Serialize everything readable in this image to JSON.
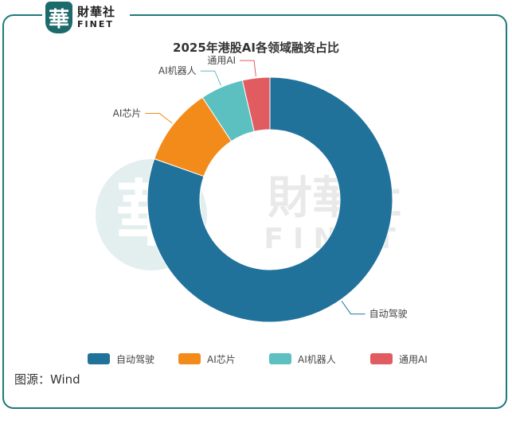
{
  "logo": {
    "mark": "華",
    "name_cn": "財華社",
    "name_en": "FINET"
  },
  "watermark": {
    "mark": "華",
    "name_cn": "財華社",
    "name_en": "FINET"
  },
  "source_label": "图源：Wind",
  "colors": {
    "accent": "#1f7a7a"
  },
  "chart_data": {
    "type": "pie",
    "title": "2025年港股AI各领域融资占比",
    "donut": true,
    "categories": [
      "自动驾驶",
      "AI芯片",
      "AI机器人",
      "通用AI"
    ],
    "values": [
      78,
      10,
      5.5,
      3.5
    ],
    "colors": [
      "#21729b",
      "#f38b1b",
      "#5cbfc0",
      "#e15c60"
    ],
    "legend": {
      "position": "bottom",
      "entries": [
        "自动驾驶",
        "AI芯片",
        "AI机器人",
        "通用AI"
      ]
    }
  }
}
